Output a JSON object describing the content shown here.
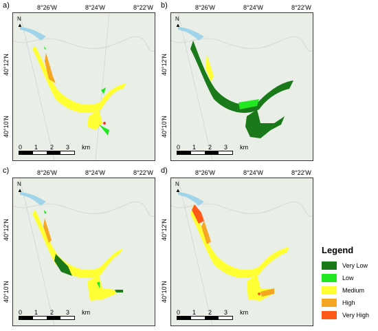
{
  "panels": [
    {
      "label": "a)",
      "lon_ticks": [
        "8°26'W",
        "8°24'W",
        "8°22'W"
      ],
      "lat_ticks": [
        "40°12'N",
        "40°10'N"
      ],
      "scale": [
        "0",
        "1",
        "2",
        "3"
      ],
      "scale_unit": "km",
      "north": "N"
    },
    {
      "label": "b)",
      "lon_ticks": [
        "8°26'W",
        "8°24'W",
        "8°22'W"
      ],
      "lat_ticks": [
        "40°12'N",
        "40°10'N"
      ],
      "scale": [
        "0",
        "1",
        "2",
        "3"
      ],
      "scale_unit": "km",
      "north": "N"
    },
    {
      "label": "c)",
      "lon_ticks": [
        "8°26'W",
        "8°24'W",
        "8°22'W"
      ],
      "lat_ticks": [
        "40°12'N",
        "40°10'N"
      ],
      "scale": [
        "0",
        "1",
        "2",
        "3"
      ],
      "scale_unit": "km",
      "north": "N"
    },
    {
      "label": "d)",
      "lon_ticks": [
        "8°26'W",
        "8°24'W",
        "8°22'W"
      ],
      "lat_ticks": [
        "40°12'N",
        "40°10'N"
      ],
      "scale": [
        "0",
        "1",
        "2",
        "3"
      ],
      "scale_unit": "km",
      "north": "N"
    }
  ],
  "legend": {
    "title": "Legend",
    "items": [
      {
        "label": "Very Low",
        "color": "#1a7a1a"
      },
      {
        "label": "Low",
        "color": "#22e822"
      },
      {
        "label": "Medium",
        "color": "#ffff33"
      },
      {
        "label": "High",
        "color": "#f5a623"
      },
      {
        "label": "Very High",
        "color": "#ff5a1a"
      }
    ]
  },
  "colors": {
    "river": "#9fd4ea",
    "background": "#e9efe7"
  }
}
